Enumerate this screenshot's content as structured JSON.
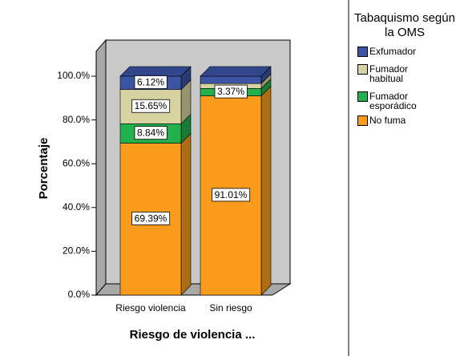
{
  "chart_data": {
    "type": "stacked_bar_3d",
    "xlabel": "Riesgo de violencia ...",
    "ylabel": "Porcentaje",
    "legend_title": "Tabaquismo según la OMS",
    "legend": "right",
    "categories": [
      "Riesgo violencia",
      "Sin riesgo"
    ],
    "series": [
      {
        "name": "No fuma",
        "color": "#f99b1c",
        "values": [
          69.39,
          91.01
        ],
        "value_labels": [
          "69.39%",
          "91.01%"
        ]
      },
      {
        "name": "Fumador esporádico",
        "color": "#22b14c",
        "values": [
          8.84,
          3.37
        ],
        "value_labels": [
          "8.84%",
          "3.37%"
        ]
      },
      {
        "name": "Fumador habitual",
        "color": "#d6d2a2",
        "values": [
          15.65,
          2.25
        ],
        "value_labels": [
          "15.65%",
          null
        ]
      },
      {
        "name": "Exfumador",
        "color": "#3b54a4",
        "values": [
          6.12,
          3.37
        ],
        "value_labels": [
          "6.12%",
          null
        ]
      }
    ],
    "ylim": [
      0,
      100
    ],
    "yticks": [
      {
        "value": 0,
        "label": "0.0%"
      },
      {
        "value": 20,
        "label": "20.0%"
      },
      {
        "value": 40,
        "label": "40.0%"
      },
      {
        "value": 60,
        "label": "60.0%"
      },
      {
        "value": 80,
        "label": "80.0%"
      },
      {
        "value": 100,
        "label": "100.0%"
      }
    ]
  }
}
